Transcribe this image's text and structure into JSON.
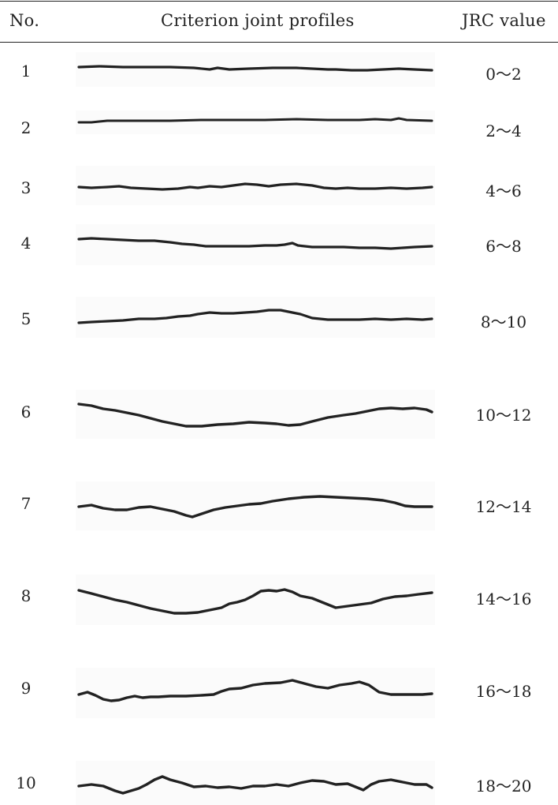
{
  "header": {
    "no": "No.",
    "profiles": "Criterion joint profiles",
    "jrc": "JRC value"
  },
  "rows": [
    {
      "no": "1",
      "jrc": "0～2"
    },
    {
      "no": "2",
      "jrc": "2～4"
    },
    {
      "no": "3",
      "jrc": "4～6"
    },
    {
      "no": "4",
      "jrc": "6～8"
    },
    {
      "no": "5",
      "jrc": "8～10"
    },
    {
      "no": "6",
      "jrc": "10～12"
    },
    {
      "no": "7",
      "jrc": "12～14"
    },
    {
      "no": "8",
      "jrc": "14～16"
    },
    {
      "no": "9",
      "jrc": "16～18"
    },
    {
      "no": "10",
      "jrc": "18～20"
    }
  ],
  "colors": {
    "line": "#222222",
    "panel": "#fbfbfb"
  }
}
